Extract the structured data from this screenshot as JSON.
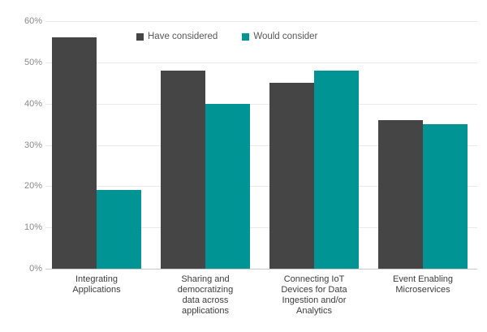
{
  "chart": {
    "background_color": "#ffffff",
    "gridline_color": "#eaeaea",
    "axis_line_color": "#c9c9c9",
    "tick_label_color": "#8a8a8a",
    "category_label_color": "#3d3d3d",
    "legend_text_color": "#595959"
  },
  "chart_data": {
    "type": "bar",
    "title": "",
    "xlabel": "",
    "ylabel": "",
    "categories": [
      "Integrating\nApplications",
      "Sharing and\ndemocratizing\ndata across\napplications",
      "Connecting IoT\nDevices for Data\nIngestion and/or\nAnalytics",
      "Event Enabling\nMicroservices"
    ],
    "series": [
      {
        "name": "Have considered",
        "color": "#454545",
        "values": [
          56,
          48,
          45,
          36
        ]
      },
      {
        "name": "Would consider",
        "color": "#009494",
        "values": [
          19,
          40,
          48,
          35
        ]
      }
    ],
    "ylim": [
      0,
      60
    ],
    "ytick_step": 10,
    "ytick_labels": [
      "0%",
      "10%",
      "20%",
      "30%",
      "40%",
      "50%",
      "60%"
    ],
    "grid": true,
    "legend_position": "top"
  }
}
